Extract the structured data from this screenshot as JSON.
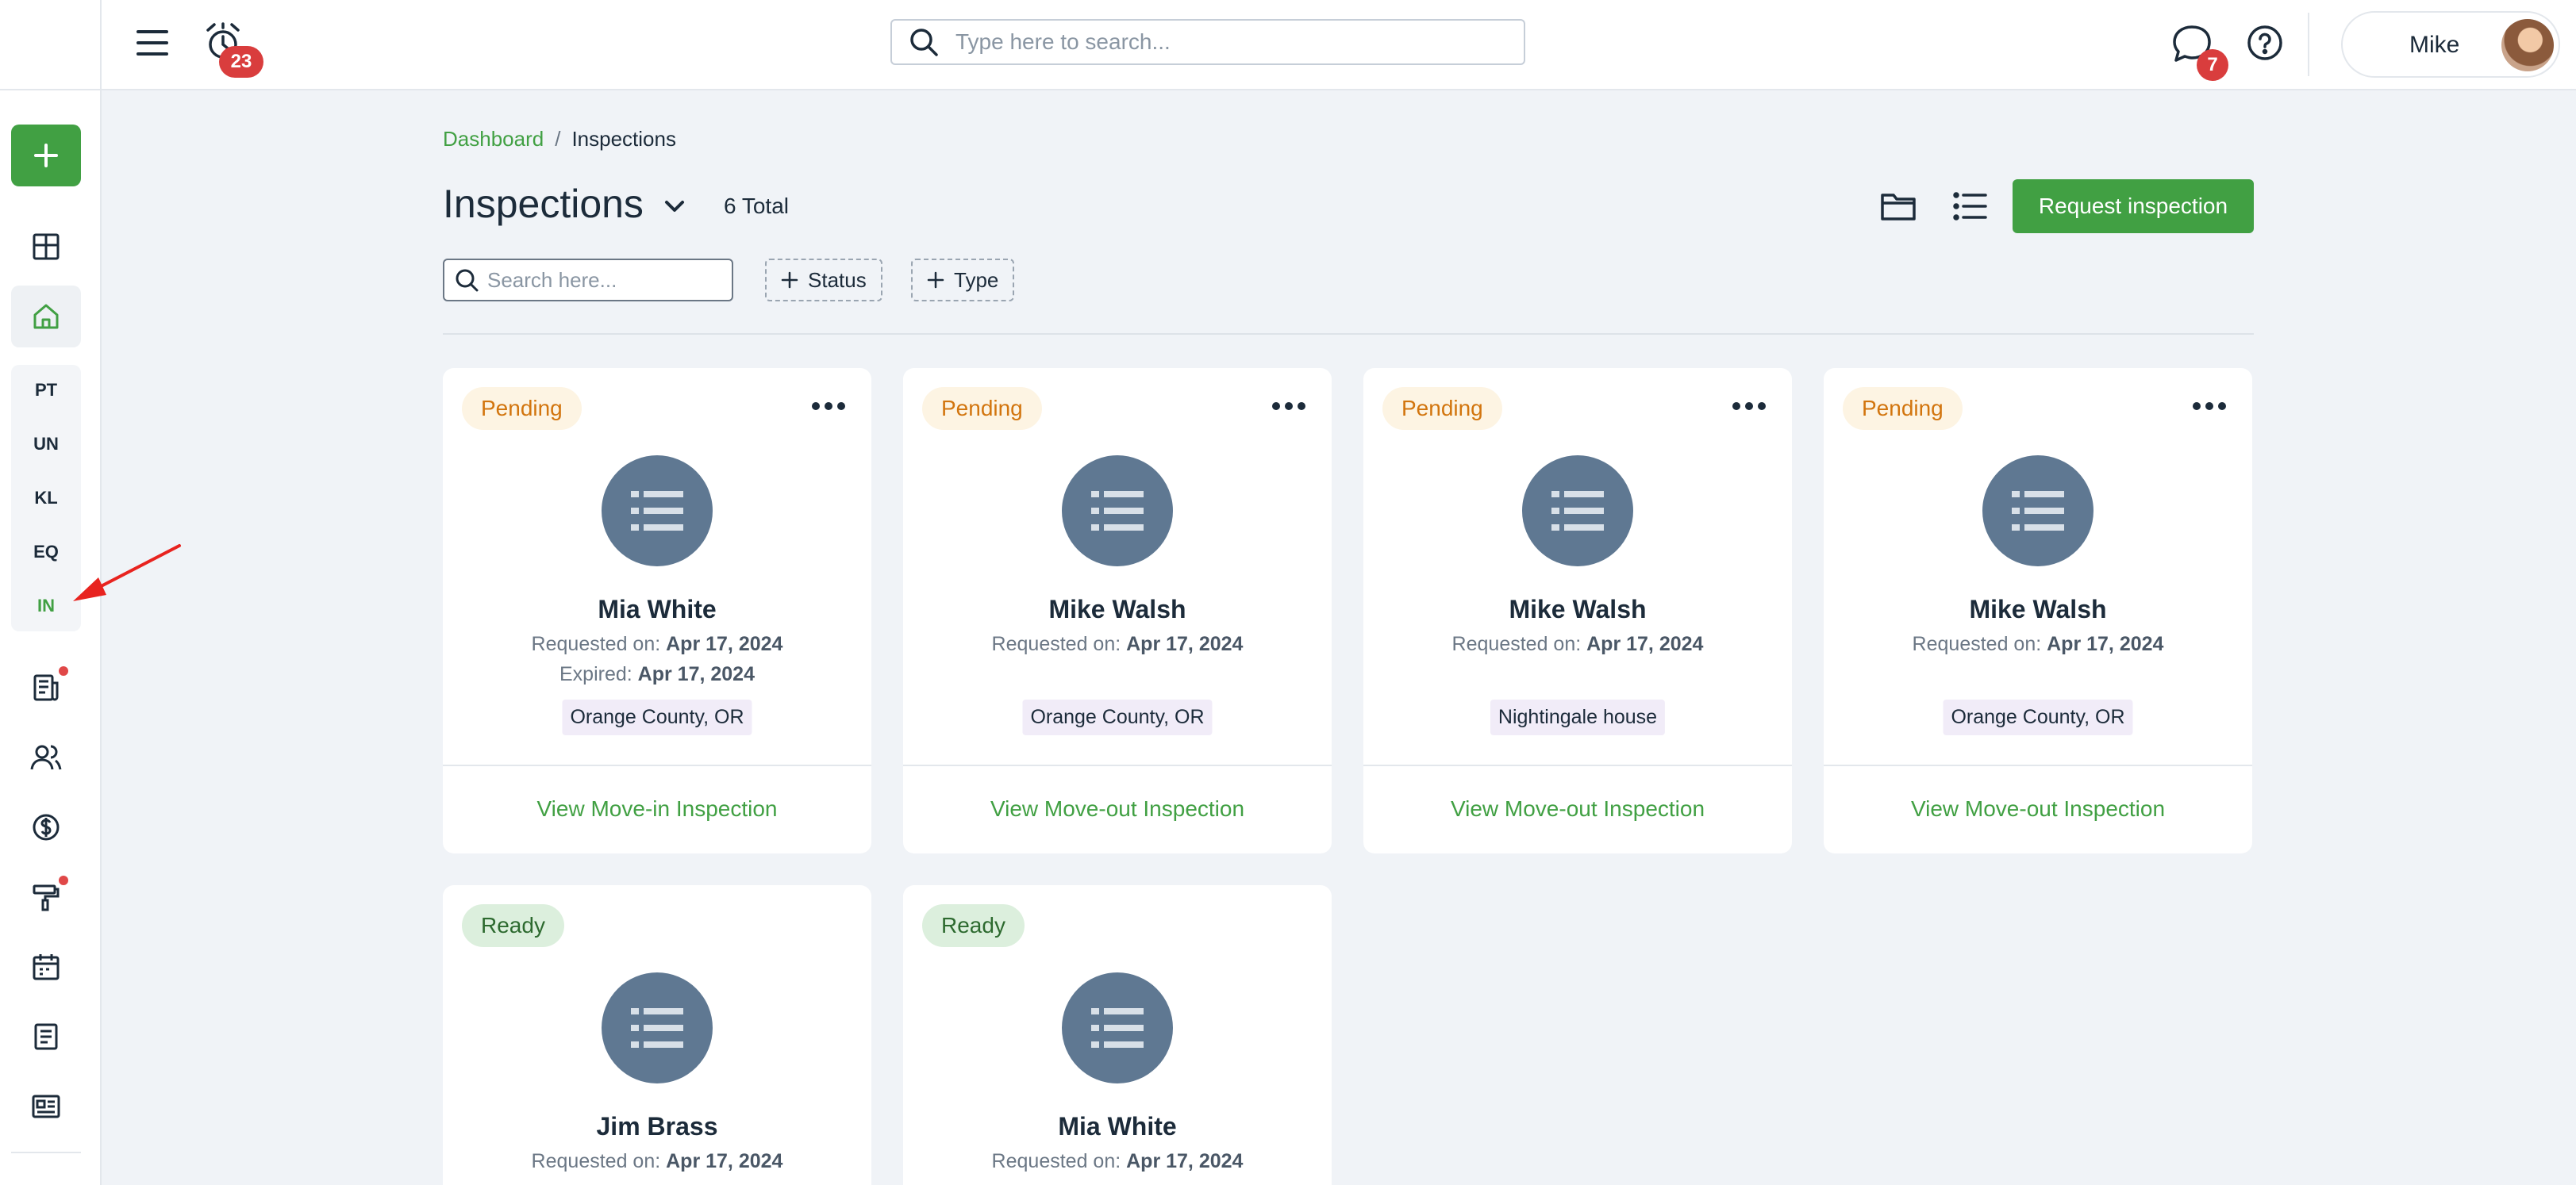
{
  "topbar": {
    "alarm_count": "23",
    "search_placeholder": "Type here to search...",
    "chat_count": "7",
    "user_name": "Mike"
  },
  "sidebar": {
    "add_label": "+",
    "abbreviations": [
      "PT",
      "UN",
      "KL",
      "EQ",
      "IN"
    ],
    "active_abbreviation": "IN",
    "icons": [
      "dashboard-icon",
      "home-icon",
      "reports-icon",
      "people-icon",
      "dollar-icon",
      "paint-roller-icon",
      "calendar-icon",
      "document-icon",
      "news-icon"
    ]
  },
  "breadcrumb": {
    "parent": "Dashboard",
    "separator": "/",
    "current": "Inspections"
  },
  "header": {
    "title": "Inspections",
    "total": "6 Total",
    "request_button": "Request inspection"
  },
  "filters": {
    "search_placeholder": "Search here...",
    "status_label": "Status",
    "type_label": "Type"
  },
  "cards": [
    {
      "status": "Pending",
      "name": "Mia White",
      "requested_label": "Requested on:",
      "requested_date": "Apr 17, 2024",
      "expired_label": "Expired:",
      "expired_date": "Apr 17, 2024",
      "location": "Orange County, OR",
      "action": "View Move-in Inspection"
    },
    {
      "status": "Pending",
      "name": "Mike Walsh",
      "requested_label": "Requested on:",
      "requested_date": "Apr 17, 2024",
      "location": "Orange County, OR",
      "action": "View Move-out Inspection"
    },
    {
      "status": "Pending",
      "name": "Mike Walsh",
      "requested_label": "Requested on:",
      "requested_date": "Apr 17, 2024",
      "location": "Nightingale house",
      "action": "View Move-out Inspection"
    },
    {
      "status": "Pending",
      "name": "Mike Walsh",
      "requested_label": "Requested on:",
      "requested_date": "Apr 17, 2024",
      "location": "Orange County, OR",
      "action": "View Move-out Inspection"
    },
    {
      "status": "Ready",
      "name": "Jim Brass",
      "requested_label": "Requested on:",
      "requested_date": "Apr 17, 2024"
    },
    {
      "status": "Ready",
      "name": "Mia White",
      "requested_label": "Requested on:",
      "requested_date": "Apr 17, 2024"
    }
  ],
  "colors": {
    "accent": "#41a043",
    "pending": "#d2750e",
    "ready": "#2d6a2f",
    "badge": "#d93d3d",
    "annotation_arrow": "#e8231f"
  }
}
